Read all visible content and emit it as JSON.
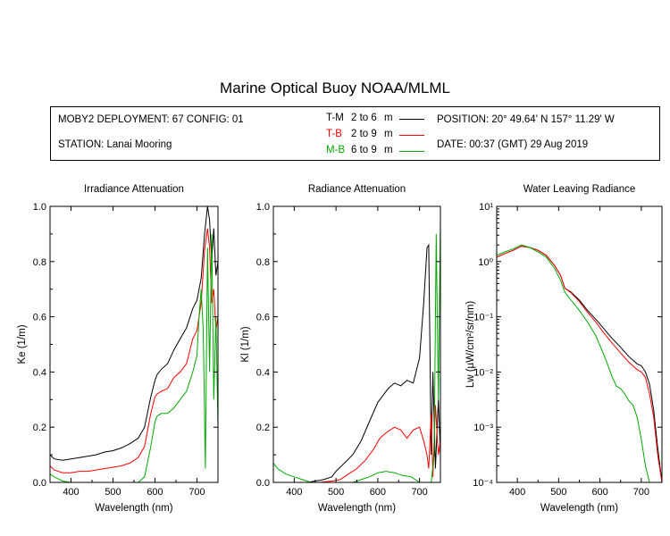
{
  "title": "Marine Optical Buoy NOAA/MLML",
  "info": {
    "deployment": "MOBY2 DEPLOYMENT: 67 CONFIG: 01",
    "station": "STATION: Lanai Mooring",
    "position": "POSITION: 20° 49.64' N   157° 11.29' W",
    "date": "DATE: 00:37 (GMT) 29 Aug 2019"
  },
  "legend": [
    {
      "code": "T-M",
      "range": "2 to 6",
      "unit": "m",
      "color": "#000000"
    },
    {
      "code": "T-B",
      "range": "2 to 9",
      "unit": "m",
      "color": "#ff0000"
    },
    {
      "code": "M-B",
      "range": "6 to 9",
      "unit": "m",
      "color": "#00aa00"
    }
  ],
  "chart_data": [
    {
      "type": "line",
      "title": "Irradiance Attenuation",
      "xlabel": "Wavelength (nm)",
      "ylabel": "Ke  (1/m)",
      "xlim": [
        350,
        750
      ],
      "ylim": [
        0,
        1.0
      ],
      "xticks": [
        400,
        500,
        600,
        700
      ],
      "xtick_labels": [
        "400",
        "500",
        "600",
        "700"
      ],
      "yticks": [
        0,
        0.2,
        0.4,
        0.6,
        0.8,
        1.0
      ],
      "ytick_labels": [
        "0.0",
        "0.2",
        "0.4",
        "0.6",
        "0.8",
        "1.0"
      ],
      "series": [
        {
          "color": "#000000",
          "x": [
            350,
            360,
            380,
            400,
            420,
            440,
            460,
            480,
            500,
            520,
            540,
            560,
            575,
            590,
            600,
            605,
            615,
            630,
            645,
            660,
            675,
            690,
            700,
            710,
            718,
            725,
            730,
            735,
            740,
            745,
            750
          ],
          "y": [
            0.1,
            0.085,
            0.08,
            0.085,
            0.09,
            0.095,
            0.1,
            0.11,
            0.115,
            0.125,
            0.14,
            0.16,
            0.2,
            0.31,
            0.37,
            0.39,
            0.41,
            0.43,
            0.48,
            0.52,
            0.56,
            0.63,
            0.66,
            0.74,
            0.9,
            1.0,
            0.95,
            0.8,
            0.92,
            0.75,
            0.8
          ]
        },
        {
          "color": "#ff0000",
          "x": [
            350,
            360,
            380,
            400,
            420,
            440,
            460,
            480,
            500,
            520,
            540,
            560,
            575,
            590,
            600,
            605,
            615,
            630,
            645,
            660,
            675,
            690,
            700,
            710,
            718,
            725,
            730,
            735,
            740,
            745,
            750
          ],
          "y": [
            0.06,
            0.045,
            0.035,
            0.035,
            0.04,
            0.04,
            0.045,
            0.05,
            0.055,
            0.06,
            0.07,
            0.09,
            0.13,
            0.25,
            0.31,
            0.32,
            0.33,
            0.34,
            0.38,
            0.4,
            0.43,
            0.52,
            0.55,
            0.65,
            0.84,
            0.92,
            0.85,
            0.65,
            0.7,
            0.55,
            0.6
          ]
        },
        {
          "color": "#00aa00",
          "x": [
            350,
            360,
            380,
            400,
            420,
            440,
            460,
            480,
            500,
            520,
            540,
            560,
            575,
            590,
            600,
            605,
            615,
            630,
            645,
            660,
            675,
            690,
            700,
            705,
            710,
            715,
            720,
            725,
            730,
            735,
            740,
            745,
            750
          ],
          "y": [
            0.03,
            0.02,
            0.005,
            0.0,
            0.0,
            0.0,
            0.0,
            0.0,
            0.0,
            0.0,
            0.0,
            0.0,
            0.02,
            0.13,
            0.22,
            0.24,
            0.25,
            0.25,
            0.27,
            0.3,
            0.33,
            0.4,
            0.46,
            0.6,
            0.7,
            0.55,
            0.05,
            0.85,
            0.4,
            0.9,
            0.3,
            0.6,
            0.2
          ]
        }
      ]
    },
    {
      "type": "line",
      "title": "Radiance Attenuation",
      "xlabel": "Wavelength (nm)",
      "ylabel": "Kl  (1/m)",
      "xlim": [
        350,
        750
      ],
      "ylim": [
        0,
        1.0
      ],
      "xticks": [
        400,
        500,
        600,
        700
      ],
      "xtick_labels": [
        "400",
        "500",
        "600",
        "700"
      ],
      "yticks": [
        0,
        0.2,
        0.4,
        0.6,
        0.8,
        1.0
      ],
      "ytick_labels": [
        "0.0",
        "0.2",
        "0.4",
        "0.6",
        "0.8",
        "1.0"
      ],
      "series": [
        {
          "color": "#000000",
          "x": [
            350,
            370,
            400,
            430,
            450,
            470,
            490,
            500,
            520,
            540,
            560,
            580,
            600,
            610,
            625,
            640,
            655,
            670,
            685,
            700,
            710,
            718,
            722,
            728,
            732,
            738,
            745,
            750
          ],
          "y": [
            0.0,
            0.0,
            0.0,
            0.0,
            0.005,
            0.01,
            0.02,
            0.04,
            0.07,
            0.1,
            0.15,
            0.22,
            0.29,
            0.31,
            0.34,
            0.36,
            0.35,
            0.37,
            0.36,
            0.45,
            0.65,
            0.85,
            0.86,
            0.1,
            0.4,
            0.05,
            0.3,
            0.1
          ]
        },
        {
          "color": "#ff0000",
          "x": [
            350,
            370,
            400,
            430,
            460,
            490,
            510,
            530,
            550,
            570,
            590,
            605,
            620,
            640,
            655,
            670,
            685,
            700,
            710,
            718,
            722,
            728,
            732,
            738,
            745,
            750
          ],
          "y": [
            0.0,
            0.0,
            0.0,
            0.0,
            0.0,
            0.005,
            0.01,
            0.03,
            0.05,
            0.08,
            0.12,
            0.16,
            0.18,
            0.2,
            0.19,
            0.16,
            0.19,
            0.2,
            0.15,
            0.1,
            0.05,
            0.25,
            0.02,
            0.28,
            0.1,
            0.15
          ]
        },
        {
          "color": "#00aa00",
          "x": [
            350,
            360,
            380,
            400,
            420,
            440,
            460,
            480,
            500,
            520,
            540,
            560,
            580,
            600,
            620,
            640,
            660,
            680,
            700,
            710,
            720,
            728,
            735,
            740,
            745,
            750
          ],
          "y": [
            0.07,
            0.05,
            0.03,
            0.02,
            0.01,
            0.0,
            0.0,
            0.0,
            0.0,
            0.0,
            0.0,
            0.01,
            0.02,
            0.035,
            0.04,
            0.035,
            0.025,
            0.02,
            0.0,
            0.0,
            0.0,
            0.0,
            0.1,
            0.9,
            0.3,
            0.95
          ]
        }
      ]
    },
    {
      "type": "line",
      "title": "Water Leaving Radiance",
      "xlabel": "Wavelength (nm)",
      "ylabel": "Lw  (µW/cm²/sr/nm)",
      "xlim": [
        350,
        750
      ],
      "ylim": [
        0.0001,
        10
      ],
      "yscale": "log",
      "xticks": [
        400,
        500,
        600,
        700
      ],
      "xtick_labels": [
        "400",
        "500",
        "600",
        "700"
      ],
      "yticks": [
        0.0001,
        0.001,
        0.01,
        0.1,
        1,
        10
      ],
      "ytick_labels": [
        "10⁻⁴",
        "10⁻³",
        "10⁻²",
        "10⁻¹",
        "10⁰",
        "10¹"
      ],
      "series": [
        {
          "color": "#000000",
          "x": [
            350,
            370,
            390,
            410,
            430,
            450,
            470,
            490,
            505,
            515,
            530,
            550,
            570,
            590,
            610,
            630,
            650,
            670,
            690,
            700,
            710,
            720,
            730,
            740,
            750
          ],
          "y": [
            1.2,
            1.4,
            1.6,
            1.9,
            1.8,
            1.6,
            1.3,
            0.85,
            0.55,
            0.33,
            0.28,
            0.2,
            0.13,
            0.09,
            0.06,
            0.04,
            0.028,
            0.019,
            0.014,
            0.013,
            0.01,
            0.006,
            0.002,
            0.0004,
            0.0001
          ]
        },
        {
          "color": "#ff0000",
          "x": [
            350,
            370,
            390,
            410,
            430,
            450,
            470,
            490,
            505,
            515,
            530,
            550,
            570,
            590,
            610,
            630,
            650,
            670,
            690,
            700,
            710,
            720,
            730,
            740,
            750
          ],
          "y": [
            1.2,
            1.4,
            1.6,
            1.9,
            1.8,
            1.6,
            1.3,
            0.85,
            0.55,
            0.33,
            0.27,
            0.19,
            0.12,
            0.08,
            0.05,
            0.033,
            0.022,
            0.015,
            0.011,
            0.01,
            0.008,
            0.004,
            0.0015,
            0.0003,
            0.0001
          ]
        },
        {
          "color": "#00aa00",
          "x": [
            350,
            370,
            390,
            410,
            430,
            450,
            470,
            490,
            505,
            515,
            530,
            550,
            570,
            590,
            610,
            630,
            640,
            650,
            660,
            670,
            680,
            690,
            700,
            710,
            720
          ],
          "y": [
            1.3,
            1.5,
            1.7,
            2.0,
            1.8,
            1.5,
            1.2,
            0.75,
            0.45,
            0.28,
            0.2,
            0.13,
            0.08,
            0.045,
            0.02,
            0.008,
            0.0055,
            0.005,
            0.004,
            0.003,
            0.0025,
            0.0015,
            0.0006,
            0.0002,
            0.0001
          ]
        }
      ]
    }
  ]
}
